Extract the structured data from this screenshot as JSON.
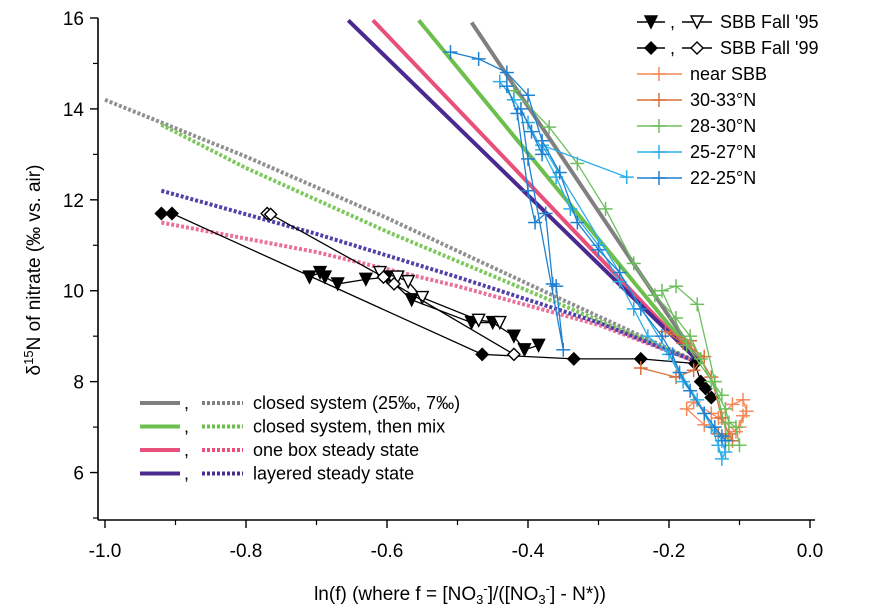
{
  "chart_data": {
    "type": "line",
    "xlabel": "ln(f) (where f = [NO3-]/([NO3-] - N*))",
    "ylabel": "δ15N of nitrate (‰ vs. air)",
    "xlim": [
      -1.0,
      0.0
    ],
    "ylim": [
      5,
      16
    ],
    "xticks": [
      -1.0,
      -0.8,
      -0.6,
      -0.4,
      -0.2,
      0.0
    ],
    "xtick_labels": [
      "-1.0",
      "-0.8",
      "-0.6",
      "-0.4",
      "-0.2",
      "0.0"
    ],
    "yticks": [
      6,
      8,
      10,
      12,
      14,
      16
    ],
    "ytick_labels": [
      "6",
      "8",
      "10",
      "12",
      "14",
      "16"
    ],
    "grid": false,
    "legend_top_right": [
      {
        "label": "SBB Fall '95",
        "prefix": ",",
        "marker": "triangle-down",
        "color": "#000000"
      },
      {
        "label": "SBB Fall '99",
        "prefix": ",",
        "marker": "diamond",
        "color": "#000000"
      },
      {
        "label": "near SBB",
        "marker": "plus",
        "color": "#f4895a"
      },
      {
        "label": "30-33°N",
        "marker": "plus",
        "color": "#d9703a"
      },
      {
        "label": "28-30°N",
        "marker": "plus",
        "color": "#6cbf5c"
      },
      {
        "label": "25-27°N",
        "marker": "plus",
        "color": "#2eaee8"
      },
      {
        "label": "22-25°N",
        "marker": "plus",
        "color": "#1f80d0"
      }
    ],
    "legend_bottom_left": [
      {
        "label": "closed system (25‰, 7‰)",
        "prefix": ",",
        "color": "#808080"
      },
      {
        "label": "closed system, then mix",
        "prefix": ",",
        "color": "#6cbf4c"
      },
      {
        "label": "one box steady state",
        "prefix": ",",
        "color": "#e8507a"
      },
      {
        "label": "layered steady state",
        "prefix": ",",
        "color": "#4a2a90"
      }
    ],
    "model_lines": [
      {
        "name": "closed system (25‰, 7‰)",
        "style": "solid",
        "color": "#808080",
        "x": [
          -0.155,
          -0.48
        ],
        "y": [
          8.4,
          15.9
        ]
      },
      {
        "name": "closed system (25‰, 7‰)",
        "style": "dotted",
        "color": "#909090",
        "x": [
          -1.0,
          -0.8,
          -0.6,
          -0.4,
          -0.155
        ],
        "y": [
          14.2,
          12.95,
          11.6,
          10.15,
          8.4
        ]
      },
      {
        "name": "closed system, then mix",
        "style": "solid",
        "color": "#6cbf4c",
        "x": [
          -0.155,
          -0.555
        ],
        "y": [
          8.4,
          15.95
        ]
      },
      {
        "name": "closed system, then mix",
        "style": "dotted",
        "color": "#7cc85c",
        "x": [
          -0.92,
          -0.8,
          -0.6,
          -0.4,
          -0.155
        ],
        "y": [
          13.65,
          12.7,
          11.3,
          10.0,
          8.4
        ]
      },
      {
        "name": "one box steady state",
        "style": "solid",
        "color": "#e8507a",
        "x": [
          -0.155,
          -0.62
        ],
        "y": [
          8.4,
          15.95
        ]
      },
      {
        "name": "one box steady state",
        "style": "dotted",
        "color": "#e8709a",
        "x": [
          -0.92,
          -0.7,
          -0.5,
          -0.3,
          -0.155
        ],
        "y": [
          11.5,
          10.85,
          10.1,
          9.25,
          8.4
        ]
      },
      {
        "name": "layered steady state",
        "style": "solid",
        "color": "#4a2a90",
        "x": [
          -0.155,
          -0.655
        ],
        "y": [
          8.4,
          15.95
        ]
      },
      {
        "name": "layered steady state",
        "style": "dotted",
        "color": "#5040a8",
        "x": [
          -0.92,
          -0.7,
          -0.5,
          -0.3,
          -0.155
        ],
        "y": [
          12.2,
          11.25,
          10.3,
          9.3,
          8.4
        ]
      }
    ],
    "series": [
      {
        "name": "SBB Fall '95 (filled)",
        "marker": "triangle-down-filled",
        "color": "#000000",
        "x": [
          -0.71,
          -0.695,
          -0.688,
          -0.67,
          -0.63,
          -0.6,
          -0.565,
          -0.48,
          -0.45,
          -0.42,
          -0.405,
          -0.385
        ],
        "y": [
          10.3,
          10.4,
          10.3,
          10.15,
          10.25,
          10.3,
          9.8,
          9.3,
          9.3,
          9.0,
          8.7,
          8.8
        ]
      },
      {
        "name": "SBB Fall '95 (open)",
        "marker": "triangle-down-open",
        "color": "#000000",
        "x": [
          -0.61,
          -0.585,
          -0.57,
          -0.55,
          -0.47,
          -0.44
        ],
        "y": [
          10.4,
          10.3,
          10.2,
          9.85,
          9.35,
          9.3
        ]
      },
      {
        "name": "SBB Fall '99 (filled)",
        "marker": "diamond-filled",
        "color": "#000000",
        "x": [
          -0.92,
          -0.905,
          -0.465,
          -0.335,
          -0.24,
          -0.163,
          -0.155,
          -0.148,
          -0.14
        ],
        "y": [
          11.7,
          11.7,
          8.6,
          8.5,
          8.5,
          8.4,
          8.0,
          7.85,
          7.65
        ]
      },
      {
        "name": "SBB Fall '99 (open)",
        "marker": "diamond-open",
        "color": "#000000",
        "x": [
          -0.77,
          -0.765,
          -0.605,
          -0.59,
          -0.42
        ],
        "y": [
          11.7,
          11.68,
          10.3,
          10.15,
          8.6
        ]
      },
      {
        "name": "near SBB",
        "marker": "plus",
        "color": "#f4895a",
        "x": [
          -0.13,
          -0.11,
          -0.095,
          -0.09,
          -0.1,
          -0.12,
          -0.15,
          -0.175,
          -0.165,
          -0.14,
          -0.12,
          -0.105,
          -0.095
        ],
        "y": [
          7.2,
          7.5,
          7.6,
          7.35,
          7.0,
          6.8,
          7.05,
          7.4,
          7.55,
          7.3,
          7.1,
          6.9,
          7.25
        ]
      },
      {
        "name": "30-33°N",
        "marker": "plus",
        "color": "#d9703a",
        "x": [
          -0.24,
          -0.19,
          -0.165,
          -0.15,
          -0.18,
          -0.205,
          -0.17,
          -0.14,
          -0.125,
          -0.115,
          -0.11,
          -0.13
        ],
        "y": [
          8.3,
          8.1,
          8.25,
          8.55,
          8.85,
          9.1,
          8.9,
          8.1,
          7.2,
          6.85,
          6.7,
          6.85
        ]
      },
      {
        "name": "28-30°N",
        "marker": "plus",
        "color": "#6cbf5c",
        "x": [
          -0.42,
          -0.37,
          -0.33,
          -0.29,
          -0.25,
          -0.22,
          -0.19,
          -0.17,
          -0.155,
          -0.14,
          -0.12,
          -0.115,
          -0.105,
          -0.1,
          -0.115,
          -0.135,
          -0.16,
          -0.19,
          -0.21,
          -0.175,
          -0.125
        ],
        "y": [
          14.4,
          13.6,
          12.8,
          11.8,
          10.6,
          9.9,
          9.4,
          9.0,
          8.5,
          8.0,
          7.4,
          7.1,
          7.0,
          6.6,
          6.6,
          8.0,
          9.7,
          10.1,
          10.0,
          8.8,
          7.7
        ]
      },
      {
        "name": "25-27°N",
        "marker": "plus",
        "color": "#2eaee8",
        "x": [
          -0.44,
          -0.42,
          -0.4,
          -0.38,
          -0.36,
          -0.34,
          -0.3,
          -0.27,
          -0.25,
          -0.23,
          -0.2,
          -0.18,
          -0.16,
          -0.14,
          -0.13,
          -0.125,
          -0.12,
          -0.125,
          -0.38,
          -0.26
        ],
        "y": [
          14.6,
          14.2,
          13.7,
          13.1,
          12.5,
          11.8,
          11.0,
          10.2,
          9.6,
          9.0,
          8.6,
          8.0,
          7.6,
          7.0,
          6.6,
          6.3,
          6.45,
          6.7,
          13.2,
          12.5
        ]
      },
      {
        "name": "22-25°N",
        "marker": "plus",
        "color": "#1f80d0",
        "x": [
          -0.51,
          -0.47,
          -0.43,
          -0.4,
          -0.38,
          -0.355,
          -0.33,
          -0.3,
          -0.27,
          -0.24,
          -0.21,
          -0.195,
          -0.185,
          -0.17,
          -0.15,
          -0.135,
          -0.125,
          -0.12
        ],
        "y": [
          15.25,
          15.1,
          14.8,
          14.3,
          13.3,
          12.6,
          11.5,
          10.9,
          10.4,
          9.6,
          9.0,
          8.6,
          8.2,
          7.8,
          7.3,
          7.0,
          6.8,
          6.7
        ]
      },
      {
        "name": "22-25°N (spread)",
        "marker": "plus",
        "color": "#1f80d0",
        "x": [
          -0.43,
          -0.415,
          -0.4,
          -0.39,
          -0.375,
          -0.365,
          -0.36,
          -0.35,
          -0.4,
          -0.41,
          -0.395,
          -0.38
        ],
        "y": [
          14.5,
          13.9,
          12.2,
          11.5,
          11.7,
          10.15,
          10.1,
          8.7,
          12.9,
          14.0,
          13.5,
          13.0
        ]
      }
    ]
  }
}
